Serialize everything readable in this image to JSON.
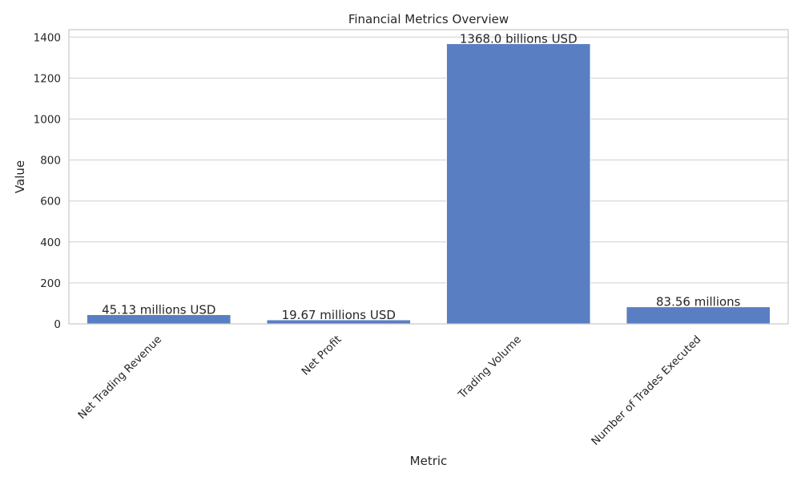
{
  "chart_data": {
    "type": "bar",
    "title": "Financial Metrics Overview",
    "xlabel": "Metric",
    "ylabel": "Value",
    "categories": [
      "Net Trading Revenue",
      "Net Profit",
      "Trading Volume",
      "Number of Trades Executed"
    ],
    "values": [
      45.13,
      19.67,
      1368.0,
      83.56
    ],
    "data_labels": [
      "45.13 millions USD",
      "19.67 millions USD",
      "1368.0 billions USD",
      "83.56 millions"
    ],
    "yticks": [
      0,
      200,
      400,
      600,
      800,
      1000,
      1200,
      1400
    ],
    "ylim": [
      0,
      1436.4
    ],
    "grid": "y",
    "legend": "none",
    "colors": {
      "bar": "#5a7ec2",
      "grid": "#d0d0d0",
      "frame": "#c8c8c8",
      "text": "#262626"
    }
  }
}
